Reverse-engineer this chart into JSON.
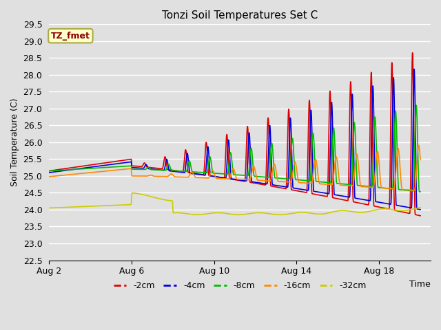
{
  "title": "Tonzi Soil Temperatures Set C",
  "xlabel": "Time",
  "ylabel": "Soil Temperature (C)",
  "ylim": [
    22.5,
    29.5
  ],
  "yticks": [
    22.5,
    23.0,
    23.5,
    24.0,
    24.5,
    25.0,
    25.5,
    26.0,
    26.5,
    27.0,
    27.5,
    28.0,
    28.5,
    29.0,
    29.5
  ],
  "bg_color": "#e0e0e0",
  "plot_bg_color": "#e0e0e0",
  "grid_color": "#ffffff",
  "legend_label": "TZ_fmet",
  "legend_bg": "#ffffcc",
  "legend_border": "#aaaa44",
  "series_colors": [
    "#dd0000",
    "#0000dd",
    "#00bb00",
    "#ff8800",
    "#cccc00"
  ],
  "series_labels": [
    "-2cm",
    "-4cm",
    "-8cm",
    "-16cm",
    "-32cm"
  ],
  "series_linewidth": 1.2,
  "xtick_positions": [
    0,
    4,
    8,
    12,
    16
  ],
  "xtick_labels": [
    "Aug 2",
    "Aug 6",
    "Aug 10",
    "Aug 14",
    "Aug 18"
  ],
  "xmax": 18.5
}
